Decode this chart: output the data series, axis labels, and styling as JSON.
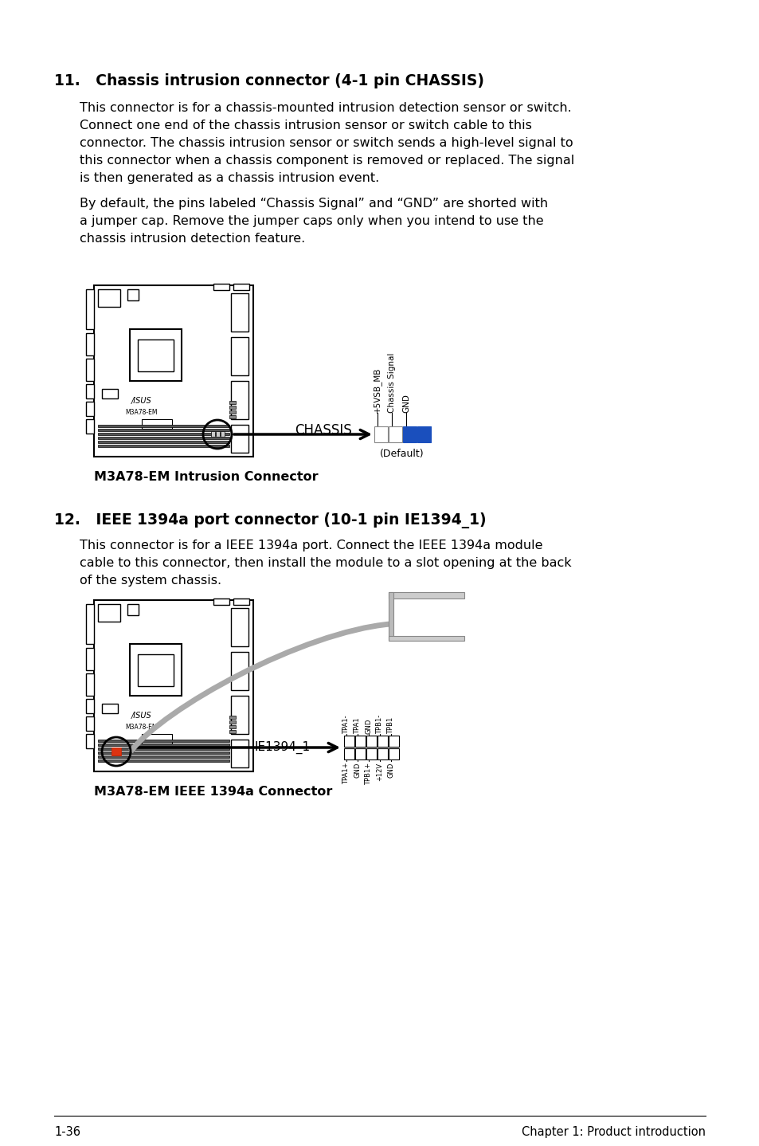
{
  "background_color": "#ffffff",
  "text_color": "#000000",
  "footer_left": "1-36",
  "footer_right": "Chapter 1: Product introduction",
  "section11_heading": "11.   Chassis intrusion connector (4-1 pin CHASSIS)",
  "section11_body1_lines": [
    "This connector is for a chassis-mounted intrusion detection sensor or switch.",
    "Connect one end of the chassis intrusion sensor or switch cable to this",
    "connector. The chassis intrusion sensor or switch sends a high-level signal to",
    "this connector when a chassis component is removed or replaced. The signal",
    "is then generated as a chassis intrusion event."
  ],
  "section11_body2_lines": [
    "By default, the pins labeled “Chassis Signal” and “GND” are shorted with",
    "a jumper cap. Remove the jumper caps only when you intend to use the",
    "chassis intrusion detection feature."
  ],
  "section11_img_caption": "M3A78-EM Intrusion Connector",
  "chassis_label": "CHASSIS",
  "chassis_default": "(Default)",
  "chassis_pin_labels": [
    "+5VSB_MB",
    "Chassis Signal",
    "GND"
  ],
  "section12_heading": "12.   IEEE 1394a port connector (10-1 pin IE1394_1)",
  "section12_body1_lines": [
    "This connector is for a IEEE 1394a port. Connect the IEEE 1394a module",
    "cable to this connector, then install the module to a slot opening at the back",
    "of the system chassis."
  ],
  "section12_img_caption": "M3A78-EM IEEE 1394a Connector",
  "ie1394_label": "IE1394_1",
  "ie_top_labels": [
    "TPA1-",
    "TPA1",
    "GND",
    "TPB1-",
    "TPB1"
  ],
  "ie_bot_labels": [
    "TPA1+",
    "GND",
    "TPB1+",
    "+12V",
    "GND"
  ]
}
